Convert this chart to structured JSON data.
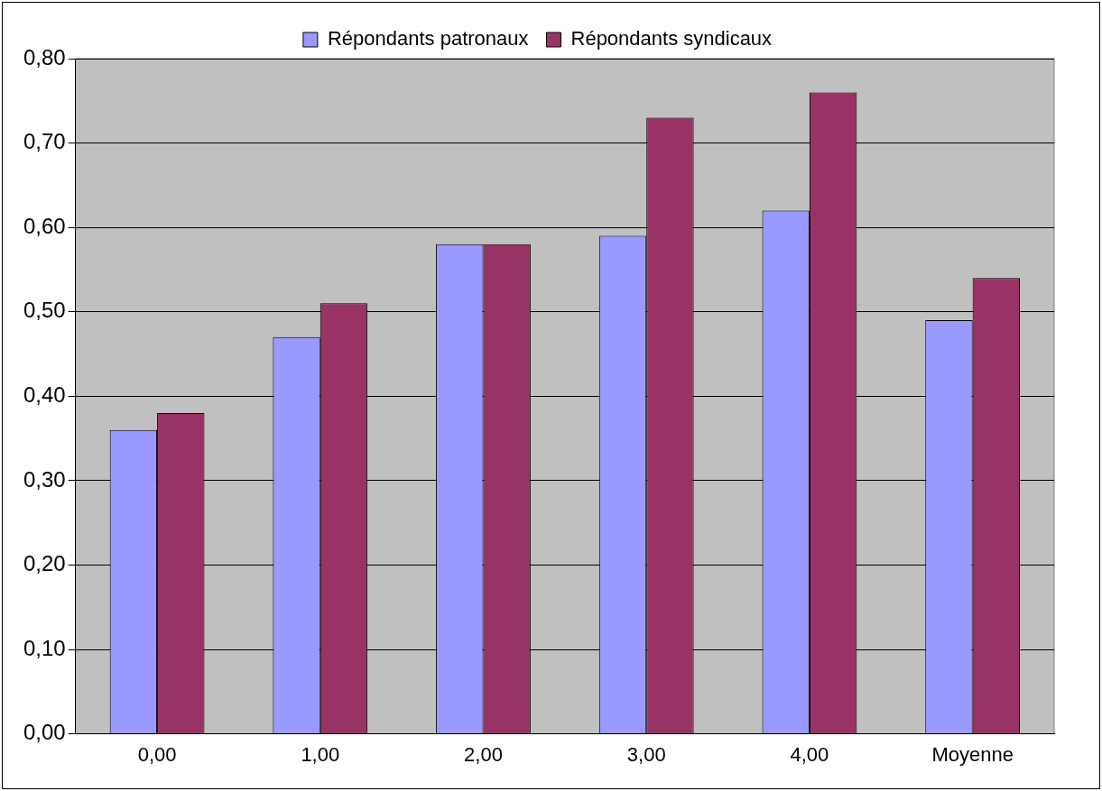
{
  "chart_data": {
    "type": "bar",
    "categories": [
      "0,00",
      "1,00",
      "2,00",
      "3,00",
      "4,00",
      "Moyenne"
    ],
    "series": [
      {
        "name": "Répondants patronaux",
        "color": "#9999ff",
        "values": [
          0.36,
          0.47,
          0.58,
          0.59,
          0.62,
          0.49
        ]
      },
      {
        "name": "Répondants syndicaux",
        "color": "#993366",
        "values": [
          0.38,
          0.51,
          0.58,
          0.73,
          0.76,
          0.54
        ]
      }
    ],
    "ylim": [
      0,
      0.8
    ],
    "yticks": [
      {
        "value": 0,
        "label": "0,00"
      },
      {
        "value": 0.1,
        "label": "0,10"
      },
      {
        "value": 0.2,
        "label": "0,20"
      },
      {
        "value": 0.3,
        "label": "0,30"
      },
      {
        "value": 0.4,
        "label": "0,40"
      },
      {
        "value": 0.5,
        "label": "0,50"
      },
      {
        "value": 0.6,
        "label": "0,60"
      },
      {
        "value": 0.7,
        "label": "0,70"
      },
      {
        "value": 0.8,
        "label": "0,80"
      }
    ],
    "grid": "y",
    "legend": "top"
  }
}
